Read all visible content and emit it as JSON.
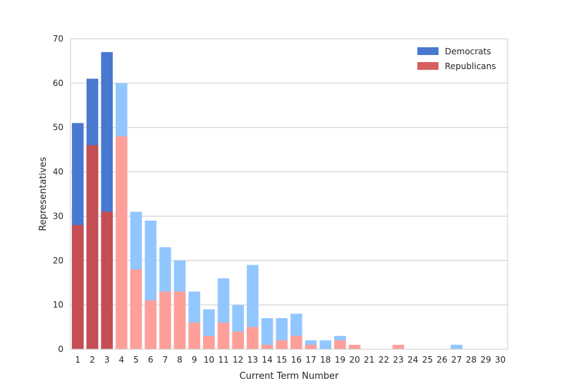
{
  "chart_data": {
    "type": "bar",
    "title": "",
    "xlabel": "Current Term Number",
    "ylabel": "Representatives",
    "ylim": [
      0,
      70
    ],
    "yticks": [
      0,
      10,
      20,
      30,
      40,
      50,
      60,
      70
    ],
    "grid": true,
    "legend_position": "top-right",
    "categories": [
      "1",
      "2",
      "3",
      "4",
      "5",
      "6",
      "7",
      "8",
      "9",
      "10",
      "11",
      "12",
      "13",
      "14",
      "15",
      "16",
      "17",
      "18",
      "19",
      "20",
      "21",
      "22",
      "23",
      "24",
      "25",
      "26",
      "27",
      "28",
      "29",
      "30"
    ],
    "series": [
      {
        "name": "Democrats",
        "color": "#4878cf",
        "values": [
          51,
          61,
          67,
          60,
          31,
          29,
          23,
          20,
          13,
          9,
          16,
          10,
          19,
          7,
          7,
          8,
          2,
          2,
          3,
          0,
          0,
          0,
          0,
          0,
          0,
          0,
          1,
          0,
          0,
          0
        ]
      },
      {
        "name": "Republicans",
        "color": "#d65f5f",
        "values": [
          28,
          46,
          31,
          48,
          18,
          11,
          13,
          13,
          6,
          3,
          6,
          4,
          5,
          1,
          2,
          3,
          1,
          0,
          2,
          1,
          0,
          0,
          1,
          0,
          0,
          0,
          0,
          0,
          0,
          0
        ]
      }
    ],
    "highlight_dark_categories": [
      "1",
      "2",
      "3"
    ],
    "light_colors": {
      "Democrats": "#92c6ff",
      "Republicans": "#ff9f9a"
    },
    "dark_colors": {
      "Democrats": "#4878cf",
      "Republicans": "#c44e52"
    }
  }
}
